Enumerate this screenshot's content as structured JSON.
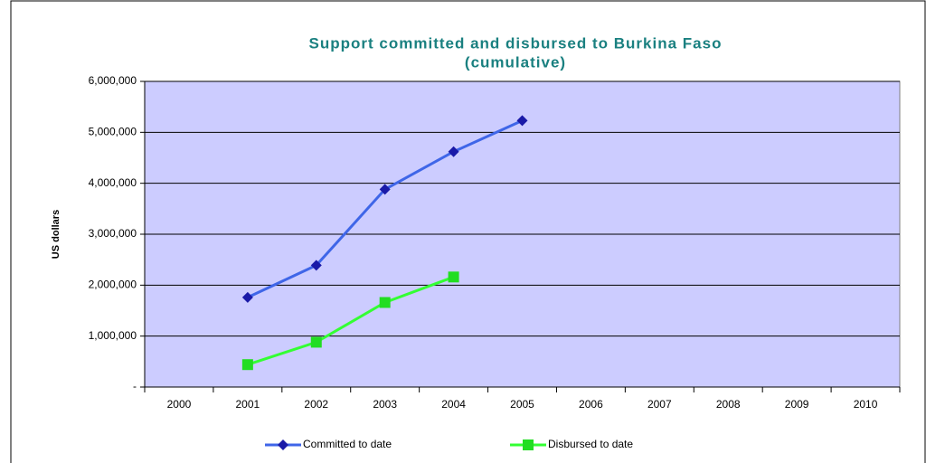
{
  "chart_data": {
    "type": "line",
    "title": [
      "Support committed and disbursed to Burkina Faso",
      "(cumulative)"
    ],
    "y_label": "US dollars",
    "categories": [
      "2000",
      "2001",
      "2002",
      "2003",
      "2004",
      "2005",
      "2006",
      "2007",
      "2008",
      "2009",
      "2010"
    ],
    "series": [
      {
        "name": "Committed to date",
        "color": "#3f66e8",
        "marker_color": "#1a1aa8",
        "marker": "diamond",
        "values": [
          null,
          1760000,
          2390000,
          3880000,
          4620000,
          5230000,
          null,
          null,
          null,
          null,
          null
        ]
      },
      {
        "name": "Disbursed to date",
        "color": "#33ff33",
        "marker_color": "#22dd22",
        "marker": "square",
        "values": [
          null,
          440000,
          880000,
          1660000,
          2160000,
          null,
          null,
          null,
          null,
          null,
          null
        ]
      }
    ],
    "ylim": [
      0,
      6000000
    ],
    "yticks": [
      {
        "value": 0,
        "label": "-"
      },
      {
        "value": 1000000,
        "label": "1,000,000"
      },
      {
        "value": 2000000,
        "label": "2,000,000"
      },
      {
        "value": 3000000,
        "label": "3,000,000"
      },
      {
        "value": 4000000,
        "label": "4,000,000"
      },
      {
        "value": 5000000,
        "label": "5,000,000"
      },
      {
        "value": 6000000,
        "label": "6,000,000"
      }
    ],
    "grid": true,
    "plot_background": "#ccccff",
    "legend": "bottom"
  }
}
